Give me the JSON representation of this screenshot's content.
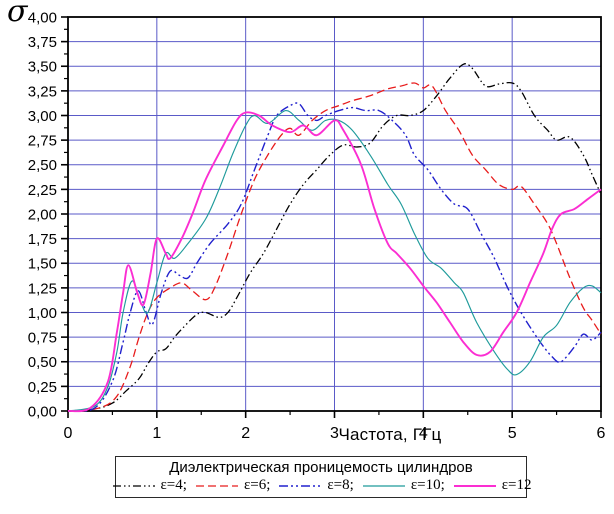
{
  "colors": {
    "grid": "#5a5ac8",
    "axis": "#000000",
    "background": "#ffffff"
  },
  "chart_data": {
    "type": "line",
    "title": "",
    "xlabel": "Частота, ГГц",
    "ylabel": "σ",
    "xlim": [
      0,
      6
    ],
    "ylim": [
      0,
      4
    ],
    "grid": true,
    "x_ticks": [
      "0",
      "1",
      "2",
      "3",
      "4",
      "5",
      "6"
    ],
    "y_ticks": [
      "0,00",
      "0,25",
      "0,50",
      "0,75",
      "1,00",
      "1,25",
      "1,50",
      "1,75",
      "2,00",
      "2,25",
      "2,50",
      "2,75",
      "3,00",
      "3,25",
      "3,50",
      "3,75",
      "4,00"
    ],
    "legend": {
      "title": "Диэлектрическая проницемость цилиндров",
      "position": "bottom"
    },
    "series": [
      {
        "name": "eps-4",
        "label": "ε=4;",
        "color": "#000000",
        "dash": "8 3 1.5 3 1.5 3",
        "width": 1.3,
        "points": [
          [
            0,
            0
          ],
          [
            0.3,
            0.02
          ],
          [
            0.5,
            0.08
          ],
          [
            0.65,
            0.2
          ],
          [
            0.8,
            0.33
          ],
          [
            0.9,
            0.48
          ],
          [
            1.0,
            0.6
          ],
          [
            1.1,
            0.63
          ],
          [
            1.2,
            0.75
          ],
          [
            1.3,
            0.85
          ],
          [
            1.45,
            0.98
          ],
          [
            1.55,
            1.0
          ],
          [
            1.7,
            0.95
          ],
          [
            1.8,
            1.0
          ],
          [
            1.9,
            1.15
          ],
          [
            2.05,
            1.4
          ],
          [
            2.2,
            1.6
          ],
          [
            2.35,
            1.85
          ],
          [
            2.5,
            2.1
          ],
          [
            2.65,
            2.3
          ],
          [
            2.8,
            2.45
          ],
          [
            2.95,
            2.6
          ],
          [
            3.1,
            2.7
          ],
          [
            3.25,
            2.68
          ],
          [
            3.4,
            2.72
          ],
          [
            3.55,
            2.9
          ],
          [
            3.7,
            3.0
          ],
          [
            3.85,
            3.0
          ],
          [
            4.0,
            3.05
          ],
          [
            4.15,
            3.2
          ],
          [
            4.3,
            3.38
          ],
          [
            4.45,
            3.52
          ],
          [
            4.55,
            3.48
          ],
          [
            4.7,
            3.3
          ],
          [
            4.85,
            3.32
          ],
          [
            5.0,
            3.33
          ],
          [
            5.1,
            3.25
          ],
          [
            5.25,
            3.0
          ],
          [
            5.4,
            2.85
          ],
          [
            5.5,
            2.75
          ],
          [
            5.65,
            2.78
          ],
          [
            5.8,
            2.6
          ],
          [
            5.9,
            2.4
          ],
          [
            6.0,
            2.2
          ]
        ]
      },
      {
        "name": "eps-6",
        "label": "ε=6;",
        "color": "#e81c1c",
        "dash": "8 4",
        "width": 1.3,
        "points": [
          [
            0,
            0
          ],
          [
            0.35,
            0.03
          ],
          [
            0.55,
            0.15
          ],
          [
            0.7,
            0.45
          ],
          [
            0.8,
            0.75
          ],
          [
            0.9,
            1.0
          ],
          [
            1.0,
            1.15
          ],
          [
            1.15,
            1.25
          ],
          [
            1.28,
            1.3
          ],
          [
            1.4,
            1.22
          ],
          [
            1.55,
            1.13
          ],
          [
            1.65,
            1.25
          ],
          [
            1.8,
            1.6
          ],
          [
            1.95,
            2.0
          ],
          [
            2.1,
            2.35
          ],
          [
            2.25,
            2.6
          ],
          [
            2.4,
            2.8
          ],
          [
            2.5,
            2.87
          ],
          [
            2.6,
            2.8
          ],
          [
            2.75,
            2.95
          ],
          [
            2.9,
            3.05
          ],
          [
            3.05,
            3.1
          ],
          [
            3.2,
            3.15
          ],
          [
            3.4,
            3.2
          ],
          [
            3.6,
            3.27
          ],
          [
            3.75,
            3.3
          ],
          [
            3.9,
            3.33
          ],
          [
            4.0,
            3.28
          ],
          [
            4.1,
            3.3
          ],
          [
            4.25,
            3.05
          ],
          [
            4.4,
            2.85
          ],
          [
            4.55,
            2.6
          ],
          [
            4.7,
            2.45
          ],
          [
            4.85,
            2.3
          ],
          [
            5.0,
            2.25
          ],
          [
            5.1,
            2.28
          ],
          [
            5.25,
            2.1
          ],
          [
            5.4,
            1.9
          ],
          [
            5.5,
            1.7
          ],
          [
            5.65,
            1.35
          ],
          [
            5.8,
            1.05
          ],
          [
            5.9,
            0.92
          ],
          [
            6.0,
            0.78
          ]
        ]
      },
      {
        "name": "eps-8",
        "label": "ε=8;",
        "color": "#2121cd",
        "dash": "9 3 2 3 2 3",
        "width": 1.4,
        "points": [
          [
            0,
            0
          ],
          [
            0.3,
            0.03
          ],
          [
            0.5,
            0.3
          ],
          [
            0.62,
            0.7
          ],
          [
            0.7,
            1.0
          ],
          [
            0.79,
            1.22
          ],
          [
            0.88,
            1.0
          ],
          [
            0.95,
            0.88
          ],
          [
            1.05,
            1.2
          ],
          [
            1.15,
            1.42
          ],
          [
            1.25,
            1.38
          ],
          [
            1.35,
            1.35
          ],
          [
            1.45,
            1.5
          ],
          [
            1.6,
            1.7
          ],
          [
            1.8,
            1.9
          ],
          [
            1.95,
            2.1
          ],
          [
            2.1,
            2.45
          ],
          [
            2.25,
            2.8
          ],
          [
            2.35,
            3.0
          ],
          [
            2.5,
            3.1
          ],
          [
            2.6,
            3.12
          ],
          [
            2.7,
            3.0
          ],
          [
            2.8,
            2.95
          ],
          [
            2.9,
            3.0
          ],
          [
            3.05,
            3.05
          ],
          [
            3.2,
            3.08
          ],
          [
            3.35,
            3.05
          ],
          [
            3.5,
            3.05
          ],
          [
            3.65,
            2.95
          ],
          [
            3.8,
            2.8
          ],
          [
            3.9,
            2.6
          ],
          [
            4.05,
            2.45
          ],
          [
            4.2,
            2.25
          ],
          [
            4.35,
            2.1
          ],
          [
            4.5,
            2.05
          ],
          [
            4.65,
            1.8
          ],
          [
            4.8,
            1.55
          ],
          [
            4.95,
            1.25
          ],
          [
            5.1,
            1.0
          ],
          [
            5.3,
            0.72
          ],
          [
            5.45,
            0.55
          ],
          [
            5.55,
            0.5
          ],
          [
            5.7,
            0.65
          ],
          [
            5.8,
            0.78
          ],
          [
            5.9,
            0.72
          ],
          [
            6.0,
            0.8
          ]
        ]
      },
      {
        "name": "eps-10",
        "label": "ε=10;",
        "color": "#1f9b9b",
        "dash": "",
        "width": 1.15,
        "points": [
          [
            0,
            0
          ],
          [
            0.3,
            0.05
          ],
          [
            0.45,
            0.25
          ],
          [
            0.55,
            0.6
          ],
          [
            0.62,
            1.0
          ],
          [
            0.72,
            1.32
          ],
          [
            0.82,
            1.1
          ],
          [
            0.9,
            1.0
          ],
          [
            1.0,
            1.3
          ],
          [
            1.1,
            1.6
          ],
          [
            1.2,
            1.55
          ],
          [
            1.35,
            1.7
          ],
          [
            1.55,
            1.95
          ],
          [
            1.7,
            2.25
          ],
          [
            1.85,
            2.6
          ],
          [
            2.0,
            2.9
          ],
          [
            2.1,
            3.0
          ],
          [
            2.25,
            2.92
          ],
          [
            2.45,
            3.05
          ],
          [
            2.6,
            2.95
          ],
          [
            2.75,
            2.85
          ],
          [
            2.9,
            2.95
          ],
          [
            3.05,
            2.95
          ],
          [
            3.2,
            2.85
          ],
          [
            3.4,
            2.6
          ],
          [
            3.6,
            2.3
          ],
          [
            3.75,
            2.1
          ],
          [
            3.9,
            1.8
          ],
          [
            4.05,
            1.55
          ],
          [
            4.2,
            1.45
          ],
          [
            4.35,
            1.3
          ],
          [
            4.45,
            1.2
          ],
          [
            4.6,
            0.9
          ],
          [
            4.8,
            0.6
          ],
          [
            4.95,
            0.42
          ],
          [
            5.05,
            0.37
          ],
          [
            5.2,
            0.5
          ],
          [
            5.35,
            0.75
          ],
          [
            5.5,
            0.87
          ],
          [
            5.65,
            1.1
          ],
          [
            5.8,
            1.25
          ],
          [
            5.9,
            1.27
          ],
          [
            6.0,
            1.2
          ]
        ]
      },
      {
        "name": "eps-12",
        "label": "ε=12",
        "color": "#fb2ed2",
        "dash": "",
        "width": 1.9,
        "points": [
          [
            0,
            0
          ],
          [
            0.25,
            0.03
          ],
          [
            0.45,
            0.3
          ],
          [
            0.55,
            0.8
          ],
          [
            0.62,
            1.2
          ],
          [
            0.68,
            1.48
          ],
          [
            0.78,
            1.2
          ],
          [
            0.85,
            1.08
          ],
          [
            0.93,
            1.4
          ],
          [
            1.0,
            1.75
          ],
          [
            1.1,
            1.6
          ],
          [
            1.15,
            1.55
          ],
          [
            1.28,
            1.75
          ],
          [
            1.4,
            2.0
          ],
          [
            1.55,
            2.35
          ],
          [
            1.75,
            2.7
          ],
          [
            1.9,
            2.95
          ],
          [
            2.0,
            3.03
          ],
          [
            2.15,
            3.0
          ],
          [
            2.3,
            2.9
          ],
          [
            2.5,
            2.83
          ],
          [
            2.65,
            2.9
          ],
          [
            2.8,
            2.8
          ],
          [
            3.0,
            2.95
          ],
          [
            3.1,
            2.85
          ],
          [
            3.3,
            2.5
          ],
          [
            3.45,
            2.05
          ],
          [
            3.6,
            1.7
          ],
          [
            3.7,
            1.6
          ],
          [
            3.85,
            1.45
          ],
          [
            4.0,
            1.27
          ],
          [
            4.15,
            1.1
          ],
          [
            4.3,
            0.9
          ],
          [
            4.45,
            0.7
          ],
          [
            4.6,
            0.57
          ],
          [
            4.75,
            0.6
          ],
          [
            4.9,
            0.8
          ],
          [
            5.05,
            1.0
          ],
          [
            5.2,
            1.3
          ],
          [
            5.35,
            1.6
          ],
          [
            5.45,
            1.85
          ],
          [
            5.55,
            2.0
          ],
          [
            5.7,
            2.05
          ],
          [
            5.85,
            2.15
          ],
          [
            6.0,
            2.25
          ]
        ]
      }
    ]
  }
}
